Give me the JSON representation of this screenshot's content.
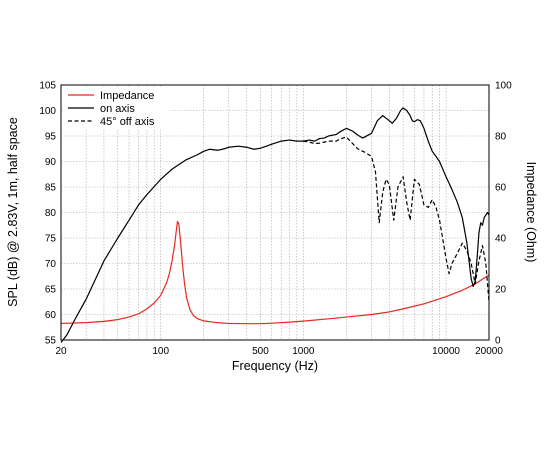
{
  "chart_data": {
    "type": "line",
    "xlabel": "Frequency (Hz)",
    "ylabel": "SPL (dB) @ 2.83V, 1m, half space",
    "ylabel_right": "Impedance (Ohm)",
    "x_scale": "log",
    "xlim": [
      20,
      20000
    ],
    "ylim": [
      55,
      105
    ],
    "ylim_right": [
      0,
      100
    ],
    "grid": true,
    "legend_position": "top-left",
    "x_tick_labels": [
      {
        "value": 20,
        "label": "20"
      },
      {
        "value": 100,
        "label": "100"
      },
      {
        "value": 500,
        "label": "500"
      },
      {
        "value": 1000,
        "label": "1000"
      },
      {
        "value": 10000,
        "label": "10000"
      },
      {
        "value": 20000,
        "label": "20000"
      }
    ],
    "y_ticks": [
      55,
      60,
      65,
      70,
      75,
      80,
      85,
      90,
      95,
      100,
      105
    ],
    "y_ticks_right": [
      0,
      20,
      40,
      60,
      80,
      100
    ],
    "series": [
      {
        "name": "Impedance",
        "axis": "right",
        "color": "#e8281e",
        "dash": "solid",
        "x": [
          20,
          30,
          40,
          50,
          60,
          70,
          80,
          90,
          100,
          110,
          115,
          120,
          125,
          128,
          131,
          134,
          137,
          140,
          143,
          147,
          152,
          160,
          170,
          180,
          200,
          250,
          300,
          400,
          500,
          600,
          800,
          1000,
          1500,
          2000,
          3000,
          4000,
          5000,
          7000,
          10000,
          13000,
          16000,
          20000
        ],
        "values": [
          6.5,
          6.8,
          7.3,
          8.0,
          9.0,
          10.3,
          12.2,
          14.5,
          17.5,
          22.5,
          26.0,
          31.0,
          37.0,
          42.0,
          46.5,
          45.5,
          40.0,
          34.0,
          28.0,
          22.0,
          16.5,
          12.0,
          9.5,
          8.4,
          7.5,
          6.8,
          6.5,
          6.4,
          6.4,
          6.6,
          7.0,
          7.4,
          8.3,
          9.0,
          10.0,
          11.0,
          12.2,
          14.2,
          17.0,
          19.5,
          22.0,
          25.5
        ]
      },
      {
        "name": "on axis",
        "axis": "left",
        "color": "#000000",
        "dash": "solid",
        "x": [
          20,
          22,
          25,
          30,
          35,
          40,
          50,
          60,
          70,
          80,
          100,
          120,
          150,
          180,
          200,
          220,
          250,
          280,
          300,
          350,
          400,
          450,
          500,
          550,
          600,
          700,
          800,
          900,
          1000,
          1100,
          1200,
          1300,
          1400,
          1500,
          1700,
          1800,
          2000,
          2200,
          2400,
          2600,
          3000,
          3300,
          3600,
          4000,
          4200,
          4500,
          4800,
          5000,
          5300,
          5600,
          5800,
          6000,
          6300,
          6600,
          7000,
          7500,
          8000,
          8500,
          9000,
          10000,
          11000,
          12000,
          13000,
          14000,
          15000,
          15500,
          16000,
          16500,
          17000,
          17500,
          18000,
          18500,
          19000,
          19500,
          20000
        ],
        "values": [
          54.5,
          56.0,
          59.0,
          63.0,
          67.0,
          70.5,
          75.0,
          78.5,
          81.5,
          83.5,
          86.5,
          88.5,
          90.3,
          91.3,
          92.0,
          92.4,
          92.2,
          92.5,
          92.8,
          93.0,
          92.8,
          92.4,
          92.6,
          93.0,
          93.4,
          94.0,
          94.2,
          94.0,
          94.0,
          94.2,
          94.0,
          94.5,
          94.6,
          95.0,
          95.3,
          95.8,
          96.5,
          96.0,
          95.2,
          94.6,
          95.5,
          98.0,
          99.0,
          98.0,
          97.5,
          98.5,
          100.0,
          100.5,
          100.0,
          99.0,
          98.0,
          97.8,
          98.2,
          98.0,
          96.5,
          94.0,
          92.0,
          91.0,
          90.0,
          87.0,
          84.5,
          82.0,
          79.0,
          74.0,
          67.0,
          65.5,
          66.5,
          71.0,
          76.0,
          78.0,
          77.5,
          79.0,
          79.5,
          80.0,
          79.5
        ]
      },
      {
        "name": "45° off axis",
        "axis": "left",
        "color": "#000000",
        "dash": "dashed",
        "x": [
          1000,
          1100,
          1200,
          1300,
          1400,
          1500,
          1700,
          1800,
          2000,
          2200,
          2400,
          2700,
          3000,
          3200,
          3400,
          3600,
          3800,
          4000,
          4300,
          4600,
          5000,
          5300,
          5600,
          6000,
          6500,
          7000,
          7500,
          8000,
          8500,
          9000,
          10000,
          10500,
          11000,
          12000,
          13000,
          14000,
          15000,
          16000,
          17000,
          18000,
          19000,
          20000
        ],
        "values": [
          94.0,
          93.8,
          93.5,
          93.6,
          93.8,
          94.0,
          94.0,
          94.4,
          94.8,
          93.6,
          92.5,
          91.8,
          91.0,
          88.0,
          78.0,
          84.0,
          86.5,
          85.5,
          78.5,
          85.0,
          87.0,
          82.0,
          78.5,
          86.5,
          85.5,
          81.5,
          81.0,
          82.5,
          81.0,
          78.5,
          71.0,
          68.0,
          70.0,
          72.0,
          74.0,
          72.5,
          70.0,
          66.0,
          70.5,
          73.5,
          70.0,
          62.5
        ]
      }
    ]
  }
}
